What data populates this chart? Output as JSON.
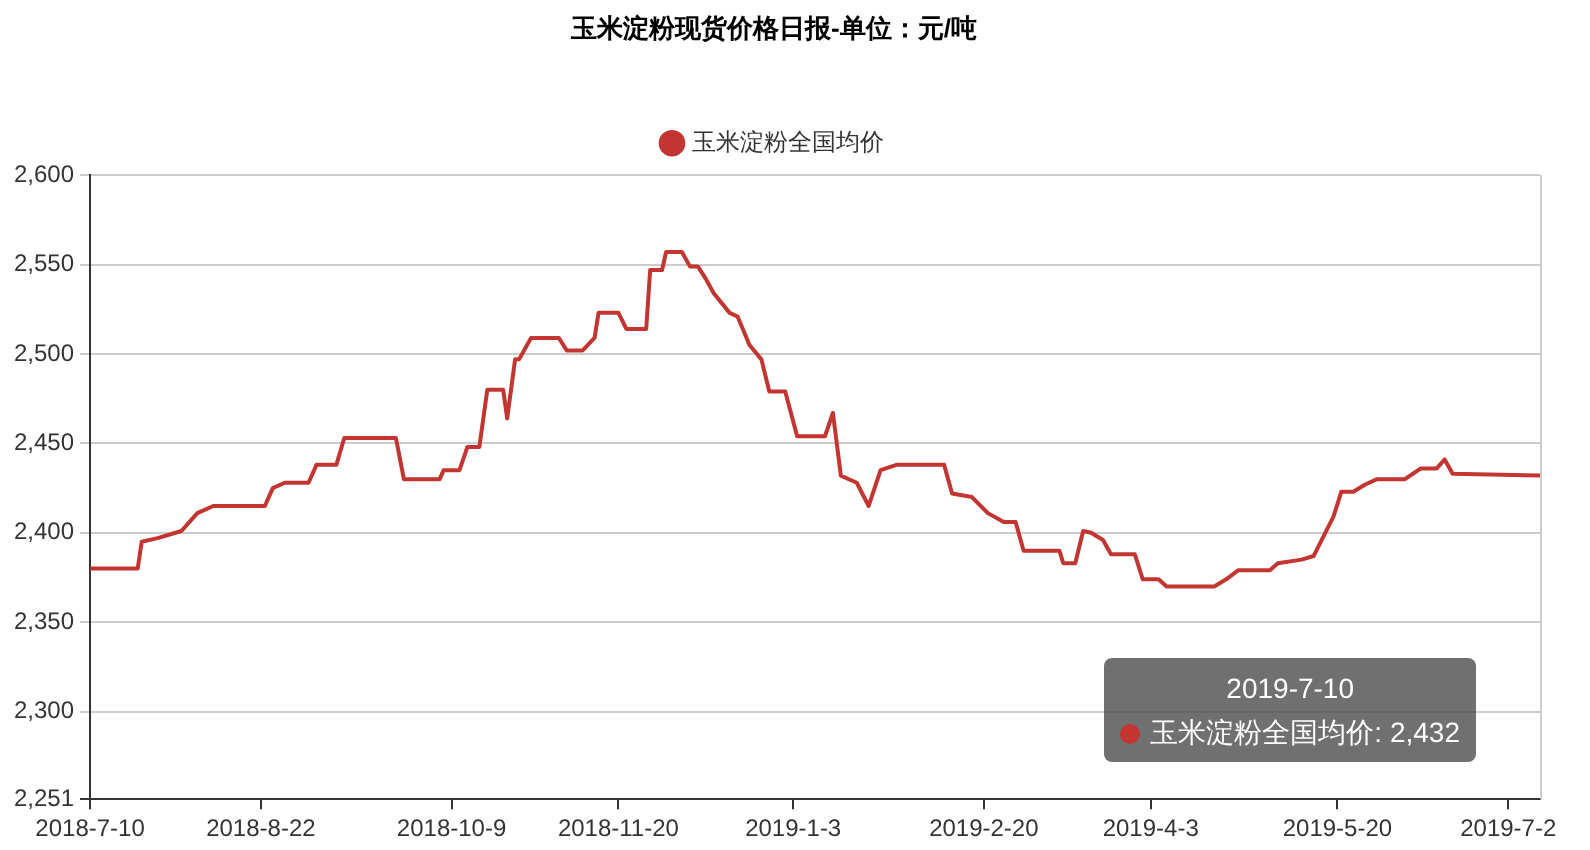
{
  "chart_data": {
    "type": "line",
    "title": "玉米淀粉现货价格日报-单位：元/吨",
    "x": [
      "2018-07-10",
      "2018-07-22",
      "2018-07-23",
      "2018-07-27",
      "2018-08-02",
      "2018-08-06",
      "2018-08-10",
      "2018-08-23",
      "2018-08-25",
      "2018-08-28",
      "2018-09-03",
      "2018-09-05",
      "2018-09-10",
      "2018-09-12",
      "2018-09-25",
      "2018-09-27",
      "2018-10-06",
      "2018-10-07",
      "2018-10-11",
      "2018-10-13",
      "2018-10-16",
      "2018-10-18",
      "2018-10-22",
      "2018-10-23",
      "2018-10-25",
      "2018-10-26",
      "2018-10-29",
      "2018-11-05",
      "2018-11-07",
      "2018-11-11",
      "2018-11-14",
      "2018-11-15",
      "2018-11-20",
      "2018-11-22",
      "2018-11-27",
      "2018-11-28",
      "2018-12-01",
      "2018-12-02",
      "2018-12-06",
      "2018-12-08",
      "2018-12-10",
      "2018-12-12",
      "2018-12-14",
      "2018-12-18",
      "2018-12-20",
      "2018-12-23",
      "2018-12-26",
      "2018-12-28",
      "2019-01-01",
      "2019-01-04",
      "2019-01-11",
      "2019-01-13",
      "2019-01-15",
      "2019-01-19",
      "2019-01-22",
      "2019-01-25",
      "2019-01-29",
      "2019-02-10",
      "2019-02-12",
      "2019-02-17",
      "2019-02-21",
      "2019-02-25",
      "2019-02-28",
      "2019-03-02",
      "2019-03-11",
      "2019-03-12",
      "2019-03-15",
      "2019-03-17",
      "2019-03-19",
      "2019-03-22",
      "2019-03-24",
      "2019-03-30",
      "2019-04-01",
      "2019-04-05",
      "2019-04-07",
      "2019-04-19",
      "2019-04-22",
      "2019-04-25",
      "2019-05-03",
      "2019-05-05",
      "2019-05-11",
      "2019-05-14",
      "2019-05-19",
      "2019-05-21",
      "2019-05-24",
      "2019-05-27",
      "2019-05-30",
      "2019-06-06",
      "2019-06-10",
      "2019-06-14",
      "2019-06-16",
      "2019-06-18",
      "2019-07-10"
    ],
    "series": [
      {
        "name": "玉米淀粉全国均价",
        "color": "#c23531",
        "values": [
          2380,
          2380,
          2395,
          2397,
          2401,
          2411,
          2415,
          2415,
          2425,
          2428,
          2428,
          2438,
          2438,
          2453,
          2453,
          2430,
          2430,
          2435,
          2435,
          2448,
          2448,
          2480,
          2480,
          2464,
          2497,
          2497,
          2509,
          2509,
          2502,
          2502,
          2509,
          2523,
          2523,
          2514,
          2514,
          2547,
          2547,
          2557,
          2557,
          2549,
          2549,
          2542,
          2534,
          2523,
          2521,
          2505,
          2497,
          2479,
          2479,
          2454,
          2454,
          2467,
          2432,
          2428,
          2415,
          2435,
          2438,
          2438,
          2422,
          2420,
          2411,
          2406,
          2406,
          2390,
          2390,
          2383,
          2383,
          2401,
          2400,
          2396,
          2388,
          2388,
          2374,
          2374,
          2370,
          2370,
          2374,
          2379,
          2379,
          2383,
          2385,
          2387,
          2409,
          2423,
          2423,
          2427,
          2430,
          2430,
          2436,
          2436,
          2441,
          2433,
          2432
        ]
      }
    ],
    "xlim": [
      "2018-07-10",
      "2019-07-10"
    ],
    "xticks": [
      {
        "value": "2018-07-10",
        "label": "2018-7-10"
      },
      {
        "value": "2018-08-22",
        "label": "2018-8-22"
      },
      {
        "value": "2018-10-09",
        "label": "2018-10-9"
      },
      {
        "value": "2018-11-20",
        "label": "2018-11-20"
      },
      {
        "value": "2019-01-03",
        "label": "2019-1-3"
      },
      {
        "value": "2019-02-20",
        "label": "2019-2-20"
      },
      {
        "value": "2019-04-03",
        "label": "2019-4-3"
      },
      {
        "value": "2019-05-20",
        "label": "2019-5-20"
      },
      {
        "value": "2019-07-02",
        "label": "2019-7-2"
      }
    ],
    "ylim": [
      2251,
      2600
    ],
    "yticks": [
      {
        "value": 2251,
        "label": "2,251"
      },
      {
        "value": 2300,
        "label": "2,300"
      },
      {
        "value": 2350,
        "label": "2,350"
      },
      {
        "value": 2400,
        "label": "2,400"
      },
      {
        "value": 2450,
        "label": "2,450"
      },
      {
        "value": 2500,
        "label": "2,500"
      },
      {
        "value": 2550,
        "label": "2,550"
      },
      {
        "value": 2600,
        "label": "2,600"
      }
    ],
    "grid": "y",
    "legend": "top",
    "marker": "none",
    "line_style": "solid",
    "annotations": [
      "2019-7-10",
      "玉米淀粉全国均价: 2,432"
    ]
  }
}
